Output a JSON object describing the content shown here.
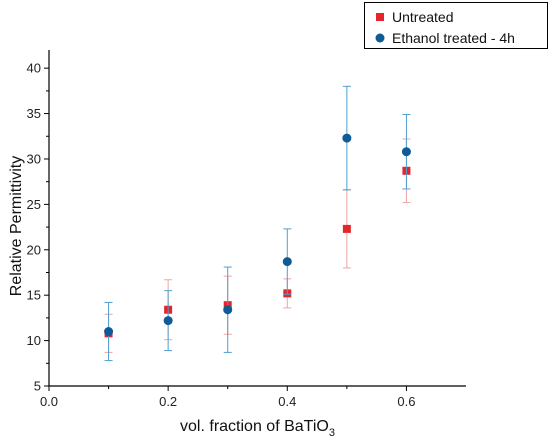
{
  "chart_data": {
    "type": "scatter",
    "title": "",
    "xlabel": "vol. fraction of BaTiO",
    "xlabel_subscript": "3",
    "ylabel": "Relative Permittivity",
    "xlim": [
      0.0,
      0.7
    ],
    "ylim": [
      5,
      42
    ],
    "xticks": [
      0.0,
      0.2,
      0.4,
      0.6
    ],
    "xtick_labels": [
      "0.0",
      "0.2",
      "0.4",
      "0.6"
    ],
    "yticks": [
      5,
      10,
      15,
      20,
      25,
      30,
      35,
      40
    ],
    "ytick_labels": [
      "5",
      "10",
      "15",
      "20",
      "25",
      "30",
      "35",
      "40"
    ],
    "grid": false,
    "legend_position": "top-right",
    "series": [
      {
        "name": "Untreated",
        "marker": "square",
        "color": "#e3262b",
        "error_color": "#f0a3a1",
        "x": [
          0.1,
          0.2,
          0.3,
          0.4,
          0.5,
          0.6
        ],
        "y": [
          10.8,
          13.4,
          13.9,
          15.2,
          22.3,
          28.7
        ],
        "error": [
          2.1,
          3.3,
          3.2,
          1.6,
          4.3,
          3.5
        ]
      },
      {
        "name": "Ethanol treated - 4h",
        "marker": "circle",
        "color": "#0f5b96",
        "error_color": "#4e9fd0",
        "x": [
          0.1,
          0.2,
          0.3,
          0.4,
          0.5,
          0.6
        ],
        "y": [
          11.0,
          12.2,
          13.4,
          18.7,
          32.3,
          30.8
        ],
        "error": [
          3.2,
          3.3,
          4.7,
          3.6,
          5.7,
          4.1
        ]
      }
    ]
  }
}
